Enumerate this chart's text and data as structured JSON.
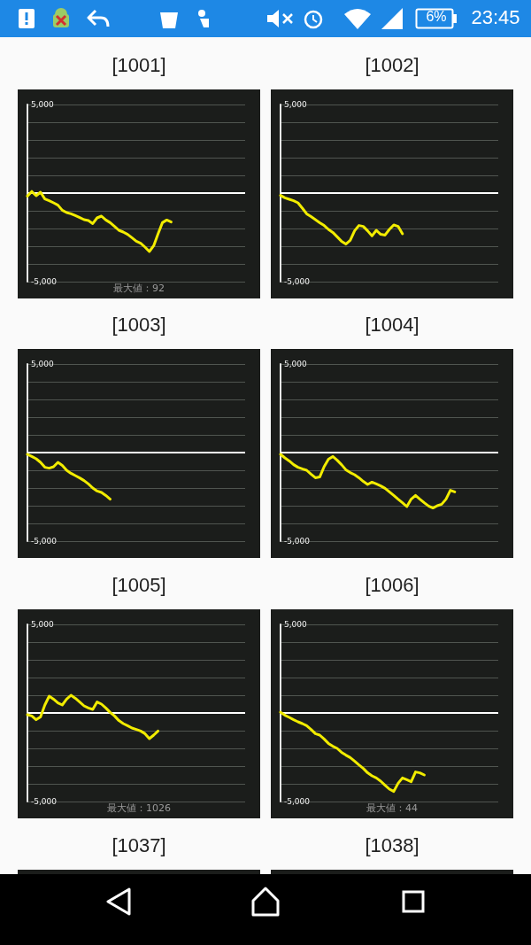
{
  "chart_data": [
    {
      "type": "other",
      "annotations": [
        "6%",
        "23:45"
      ]
    },
    {
      "type": "line",
      "title": "[1001]",
      "categories": [
        null,
        null,
        null,
        null,
        null,
        null,
        null,
        null,
        null,
        null,
        null,
        null,
        null,
        null,
        null,
        null,
        null,
        null,
        null,
        null,
        null,
        null,
        null,
        null,
        null,
        null,
        null,
        null,
        null,
        null,
        null,
        null,
        null,
        null,
        null,
        null,
        null,
        null,
        null,
        null,
        null,
        null,
        null,
        null,
        null,
        null,
        null,
        null,
        null,
        null,
        null
      ],
      "series": [
        {
          "color": "#f2ec00",
          "values": [
            -170,
            90,
            -150,
            50,
            -330,
            -430,
            -550,
            -680,
            -970,
            -1100,
            -1170,
            -1270,
            -1380,
            -1500,
            -1550,
            -1720,
            -1400,
            -1300,
            -1520,
            -1670,
            -1880,
            -2100,
            -2200,
            -2330,
            -2520,
            -2720,
            -2830,
            -3050,
            -3300,
            -2970,
            -2300,
            -1670,
            -1520,
            -1630,
            null,
            null,
            null,
            null,
            null,
            null,
            null,
            null,
            null,
            null,
            null,
            null,
            null,
            null,
            null,
            null,
            null
          ]
        }
      ],
      "ylim": [
        -5000,
        5000
      ],
      "yticks": [
        {
          "value": 5000,
          "label": "5,000"
        },
        {
          "value": 4000,
          "label": null
        },
        {
          "value": 3000,
          "label": null
        },
        {
          "value": 2000,
          "label": null
        },
        {
          "value": 1000,
          "label": null
        },
        {
          "value": 0,
          "label": null
        },
        {
          "value": -1000,
          "label": null
        },
        {
          "value": -2000,
          "label": null
        },
        {
          "value": -3000,
          "label": null
        },
        {
          "value": -4000,
          "label": null
        },
        {
          "value": -5000,
          "label": "-5,000"
        }
      ],
      "grid": "y",
      "marker": "none",
      "tick_labels": "y",
      "ref_lines": [
        {
          "axis": "y",
          "value": 0,
          "color": "#ffffff"
        }
      ],
      "annotations": [
        "最大値：92"
      ]
    },
    {
      "type": "line",
      "title": "[1002]",
      "categories": [
        null,
        null,
        null,
        null,
        null,
        null,
        null,
        null,
        null,
        null,
        null,
        null,
        null,
        null,
        null,
        null,
        null,
        null,
        null,
        null,
        null,
        null,
        null,
        null,
        null,
        null,
        null,
        null,
        null,
        null,
        null,
        null,
        null,
        null,
        null,
        null,
        null,
        null,
        null,
        null,
        null,
        null,
        null,
        null,
        null,
        null,
        null,
        null,
        null,
        null,
        null
      ],
      "series": [
        {
          "color": "#f2ec00",
          "values": [
            -130,
            -270,
            -350,
            -430,
            -550,
            -850,
            -1170,
            -1330,
            -1500,
            -1670,
            -1830,
            -2050,
            -2220,
            -2470,
            -2720,
            -2880,
            -2670,
            -2130,
            -1830,
            -1880,
            -2130,
            -2420,
            -2100,
            -2330,
            -2370,
            -2050,
            -1800,
            -1880,
            -2300,
            null,
            null,
            null,
            null,
            null,
            null,
            null,
            null,
            null,
            null,
            null,
            null,
            null,
            null,
            null,
            null,
            null,
            null,
            null,
            null,
            null,
            null
          ]
        }
      ],
      "ylim": [
        -5000,
        5000
      ],
      "yticks": [
        {
          "value": 5000,
          "label": "5,000"
        },
        {
          "value": 4000,
          "label": null
        },
        {
          "value": 3000,
          "label": null
        },
        {
          "value": 2000,
          "label": null
        },
        {
          "value": 1000,
          "label": null
        },
        {
          "value": 0,
          "label": null
        },
        {
          "value": -1000,
          "label": null
        },
        {
          "value": -2000,
          "label": null
        },
        {
          "value": -3000,
          "label": null
        },
        {
          "value": -4000,
          "label": null
        },
        {
          "value": -5000,
          "label": "-5,000"
        }
      ],
      "grid": "y",
      "marker": "none",
      "tick_labels": "y",
      "ref_lines": [
        {
          "axis": "y",
          "value": 0,
          "color": "#ffffff"
        }
      ]
    },
    {
      "type": "line",
      "title": "[1003]",
      "categories": [
        null,
        null,
        null,
        null,
        null,
        null,
        null,
        null,
        null,
        null,
        null,
        null,
        null,
        null,
        null,
        null,
        null,
        null,
        null,
        null,
        null,
        null,
        null,
        null,
        null,
        null,
        null,
        null,
        null,
        null,
        null,
        null,
        null,
        null,
        null,
        null,
        null,
        null,
        null,
        null,
        null,
        null,
        null,
        null,
        null,
        null,
        null,
        null,
        null,
        null,
        null
      ],
      "series": [
        {
          "color": "#f2ec00",
          "values": [
            -100,
            -220,
            -350,
            -550,
            -830,
            -880,
            -800,
            -550,
            -720,
            -1000,
            -1170,
            -1300,
            -1430,
            -1580,
            -1770,
            -2000,
            -2170,
            -2250,
            -2420,
            -2630,
            null,
            null,
            null,
            null,
            null,
            null,
            null,
            null,
            null,
            null,
            null,
            null,
            null,
            null,
            null,
            null,
            null,
            null,
            null,
            null,
            null,
            null,
            null,
            null,
            null,
            null,
            null,
            null,
            null,
            null,
            null
          ]
        }
      ],
      "ylim": [
        -5000,
        5000
      ],
      "yticks": [
        {
          "value": 5000,
          "label": "5,000"
        },
        {
          "value": 4000,
          "label": null
        },
        {
          "value": 3000,
          "label": null
        },
        {
          "value": 2000,
          "label": null
        },
        {
          "value": 1000,
          "label": null
        },
        {
          "value": 0,
          "label": null
        },
        {
          "value": -1000,
          "label": null
        },
        {
          "value": -2000,
          "label": null
        },
        {
          "value": -3000,
          "label": null
        },
        {
          "value": -4000,
          "label": null
        },
        {
          "value": -5000,
          "label": "-5,000"
        }
      ],
      "grid": "y",
      "marker": "none",
      "tick_labels": "y",
      "ref_lines": [
        {
          "axis": "y",
          "value": 0,
          "color": "#ffffff"
        }
      ]
    },
    {
      "type": "line",
      "title": "[1004]",
      "categories": [
        null,
        null,
        null,
        null,
        null,
        null,
        null,
        null,
        null,
        null,
        null,
        null,
        null,
        null,
        null,
        null,
        null,
        null,
        null,
        null,
        null,
        null,
        null,
        null,
        null,
        null,
        null,
        null,
        null,
        null,
        null,
        null,
        null,
        null,
        null,
        null,
        null,
        null,
        null,
        null,
        null,
        null,
        null,
        null,
        null,
        null,
        null,
        null,
        null,
        null,
        null
      ],
      "series": [
        {
          "color": "#f2ec00",
          "values": [
            -100,
            -300,
            -470,
            -680,
            -830,
            -920,
            -1000,
            -1220,
            -1420,
            -1380,
            -800,
            -380,
            -220,
            -430,
            -680,
            -970,
            -1130,
            -1250,
            -1420,
            -1630,
            -1800,
            -1670,
            -1770,
            -1880,
            -2020,
            -2220,
            -2420,
            -2630,
            -2830,
            -3050,
            -2630,
            -2420,
            -2630,
            -2830,
            -3020,
            -3130,
            -3000,
            -2920,
            -2630,
            -2130,
            -2220,
            null,
            null,
            null,
            null,
            null,
            null,
            null,
            null,
            null,
            null
          ]
        }
      ],
      "ylim": [
        -5000,
        5000
      ],
      "yticks": [
        {
          "value": 5000,
          "label": "5,000"
        },
        {
          "value": 4000,
          "label": null
        },
        {
          "value": 3000,
          "label": null
        },
        {
          "value": 2000,
          "label": null
        },
        {
          "value": 1000,
          "label": null
        },
        {
          "value": 0,
          "label": null
        },
        {
          "value": -1000,
          "label": null
        },
        {
          "value": -2000,
          "label": null
        },
        {
          "value": -3000,
          "label": null
        },
        {
          "value": -4000,
          "label": null
        },
        {
          "value": -5000,
          "label": "-5,000"
        }
      ],
      "grid": "y",
      "marker": "none",
      "tick_labels": "y",
      "ref_lines": [
        {
          "axis": "y",
          "value": 0,
          "color": "#ffffff"
        }
      ]
    },
    {
      "type": "line",
      "title": "[1005]",
      "categories": [
        null,
        null,
        null,
        null,
        null,
        null,
        null,
        null,
        null,
        null,
        null,
        null,
        null,
        null,
        null,
        null,
        null,
        null,
        null,
        null,
        null,
        null,
        null,
        null,
        null,
        null,
        null,
        null,
        null,
        null,
        null,
        null,
        null,
        null,
        null,
        null,
        null,
        null,
        null,
        null,
        null,
        null,
        null,
        null,
        null,
        null,
        null,
        null,
        null,
        null,
        null
      ],
      "series": [
        {
          "color": "#f2ec00",
          "values": [
            -100,
            -170,
            -380,
            -220,
            450,
            950,
            780,
            570,
            450,
            780,
            1000,
            830,
            620,
            400,
            280,
            200,
            620,
            500,
            280,
            30,
            -170,
            -430,
            -600,
            -720,
            -850,
            -930,
            -1020,
            -1170,
            -1450,
            -1250,
            -1020,
            null,
            null,
            null,
            null,
            null,
            null,
            null,
            null,
            null,
            null,
            null,
            null,
            null,
            null,
            null,
            null,
            null,
            null,
            null,
            null
          ]
        }
      ],
      "ylim": [
        -5000,
        5000
      ],
      "yticks": [
        {
          "value": 5000,
          "label": "5,000"
        },
        {
          "value": 4000,
          "label": null
        },
        {
          "value": 3000,
          "label": null
        },
        {
          "value": 2000,
          "label": null
        },
        {
          "value": 1000,
          "label": null
        },
        {
          "value": 0,
          "label": null
        },
        {
          "value": -1000,
          "label": null
        },
        {
          "value": -2000,
          "label": null
        },
        {
          "value": -3000,
          "label": null
        },
        {
          "value": -4000,
          "label": null
        },
        {
          "value": -5000,
          "label": "-5,000"
        }
      ],
      "grid": "y",
      "marker": "none",
      "tick_labels": "y",
      "ref_lines": [
        {
          "axis": "y",
          "value": 0,
          "color": "#ffffff"
        }
      ],
      "annotations": [
        "最大値：1026"
      ]
    },
    {
      "type": "line",
      "title": "[1006]",
      "categories": [
        null,
        null,
        null,
        null,
        null,
        null,
        null,
        null,
        null,
        null,
        null,
        null,
        null,
        null,
        null,
        null,
        null,
        null,
        null,
        null,
        null,
        null,
        null,
        null,
        null,
        null,
        null,
        null,
        null,
        null,
        null,
        null,
        null,
        null,
        null,
        null,
        null,
        null,
        null,
        null,
        null,
        null,
        null,
        null,
        null,
        null,
        null,
        null,
        null,
        null,
        null
      ],
      "series": [
        {
          "color": "#f2ec00",
          "values": [
            40,
            -130,
            -250,
            -380,
            -500,
            -600,
            -720,
            -930,
            -1170,
            -1250,
            -1470,
            -1720,
            -1880,
            -2000,
            -2220,
            -2380,
            -2520,
            -2720,
            -2930,
            -3130,
            -3380,
            -3550,
            -3670,
            -3850,
            -4080,
            -4300,
            -4430,
            -3970,
            -3670,
            -3770,
            -3880,
            -3330,
            -3380,
            -3500,
            null,
            null,
            null,
            null,
            null,
            null,
            null,
            null,
            null,
            null,
            null,
            null,
            null,
            null,
            null,
            null,
            null
          ]
        }
      ],
      "ylim": [
        -5000,
        5000
      ],
      "yticks": [
        {
          "value": 5000,
          "label": "5,000"
        },
        {
          "value": 4000,
          "label": null
        },
        {
          "value": 3000,
          "label": null
        },
        {
          "value": 2000,
          "label": null
        },
        {
          "value": 1000,
          "label": null
        },
        {
          "value": 0,
          "label": null
        },
        {
          "value": -1000,
          "label": null
        },
        {
          "value": -2000,
          "label": null
        },
        {
          "value": -3000,
          "label": null
        },
        {
          "value": -4000,
          "label": null
        },
        {
          "value": -5000,
          "label": "-5,000"
        }
      ],
      "grid": "y",
      "marker": "none",
      "tick_labels": "y",
      "ref_lines": [
        {
          "axis": "y",
          "value": 0,
          "color": "#ffffff"
        }
      ],
      "annotations": [
        "最大値：44"
      ]
    },
    {
      "type": "other",
      "title": "[1037]"
    },
    {
      "type": "other",
      "title": "[1038]"
    }
  ]
}
